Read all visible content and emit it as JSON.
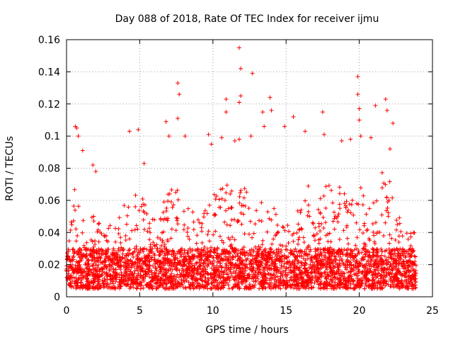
{
  "chart_data": {
    "type": "scatter",
    "title": "Day 088 of 2018, Rate Of TEC Index for receiver ijmu",
    "xlabel": "GPS time / hours",
    "ylabel": "ROTI / TECUs",
    "xlim": [
      0,
      25
    ],
    "ylim": [
      0,
      0.16
    ],
    "xticks": [
      0,
      5,
      10,
      15,
      20,
      25
    ],
    "xtick_labels": [
      "0",
      "5",
      "10",
      "15",
      "20",
      "25"
    ],
    "yticks": [
      0,
      0.02,
      0.04,
      0.06,
      0.08,
      0.1,
      0.12,
      0.14,
      0.16
    ],
    "ytick_labels": [
      "0",
      "0.02",
      "0.04",
      "0.06",
      "0.08",
      "0.1",
      "0.12",
      "0.14",
      "0.16"
    ],
    "grid": true,
    "marker": "+",
    "marker_color": "#ff0000",
    "baseline_range": [
      0.005,
      0.03
    ],
    "notable_points": [
      {
        "x": 0.6,
        "y": 0.106
      },
      {
        "x": 0.7,
        "y": 0.105
      },
      {
        "x": 0.8,
        "y": 0.1
      },
      {
        "x": 1.1,
        "y": 0.091
      },
      {
        "x": 1.8,
        "y": 0.082
      },
      {
        "x": 2.0,
        "y": 0.078
      },
      {
        "x": 4.3,
        "y": 0.103
      },
      {
        "x": 4.9,
        "y": 0.104
      },
      {
        "x": 5.3,
        "y": 0.083
      },
      {
        "x": 6.8,
        "y": 0.109
      },
      {
        "x": 7.0,
        "y": 0.1
      },
      {
        "x": 7.6,
        "y": 0.133
      },
      {
        "x": 7.7,
        "y": 0.126
      },
      {
        "x": 7.6,
        "y": 0.111
      },
      {
        "x": 8.1,
        "y": 0.1
      },
      {
        "x": 9.7,
        "y": 0.101
      },
      {
        "x": 9.9,
        "y": 0.095
      },
      {
        "x": 10.6,
        "y": 0.099
      },
      {
        "x": 10.9,
        "y": 0.115
      },
      {
        "x": 10.9,
        "y": 0.123
      },
      {
        "x": 11.5,
        "y": 0.097
      },
      {
        "x": 11.8,
        "y": 0.155
      },
      {
        "x": 11.9,
        "y": 0.142
      },
      {
        "x": 11.9,
        "y": 0.125
      },
      {
        "x": 11.8,
        "y": 0.121
      },
      {
        "x": 11.8,
        "y": 0.098
      },
      {
        "x": 12.7,
        "y": 0.139
      },
      {
        "x": 12.6,
        "y": 0.1
      },
      {
        "x": 13.4,
        "y": 0.115
      },
      {
        "x": 13.5,
        "y": 0.106
      },
      {
        "x": 13.9,
        "y": 0.124
      },
      {
        "x": 14.0,
        "y": 0.116
      },
      {
        "x": 14.9,
        "y": 0.106
      },
      {
        "x": 15.5,
        "y": 0.112
      },
      {
        "x": 16.3,
        "y": 0.103
      },
      {
        "x": 17.5,
        "y": 0.115
      },
      {
        "x": 17.6,
        "y": 0.101
      },
      {
        "x": 18.8,
        "y": 0.097
      },
      {
        "x": 19.4,
        "y": 0.098
      },
      {
        "x": 19.9,
        "y": 0.137
      },
      {
        "x": 19.9,
        "y": 0.126
      },
      {
        "x": 20.0,
        "y": 0.117
      },
      {
        "x": 20.0,
        "y": 0.11
      },
      {
        "x": 20.1,
        "y": 0.1
      },
      {
        "x": 20.8,
        "y": 0.099
      },
      {
        "x": 21.1,
        "y": 0.119
      },
      {
        "x": 21.8,
        "y": 0.123
      },
      {
        "x": 21.9,
        "y": 0.116
      },
      {
        "x": 22.3,
        "y": 0.108
      },
      {
        "x": 22.1,
        "y": 0.092
      }
    ],
    "activity_envelope": [
      {
        "x": 0,
        "peak": 0.04
      },
      {
        "x": 0.5,
        "peak": 0.07
      },
      {
        "x": 1,
        "peak": 0.06
      },
      {
        "x": 1.5,
        "peak": 0.05
      },
      {
        "x": 2,
        "peak": 0.055
      },
      {
        "x": 2.5,
        "peak": 0.04
      },
      {
        "x": 3,
        "peak": 0.045
      },
      {
        "x": 3.5,
        "peak": 0.05
      },
      {
        "x": 4,
        "peak": 0.06
      },
      {
        "x": 4.5,
        "peak": 0.075
      },
      {
        "x": 5,
        "peak": 0.07
      },
      {
        "x": 5.5,
        "peak": 0.055
      },
      {
        "x": 6,
        "peak": 0.05
      },
      {
        "x": 6.5,
        "peak": 0.06
      },
      {
        "x": 7,
        "peak": 0.07
      },
      {
        "x": 7.5,
        "peak": 0.075
      },
      {
        "x": 8,
        "peak": 0.065
      },
      {
        "x": 8.5,
        "peak": 0.055
      },
      {
        "x": 9,
        "peak": 0.05
      },
      {
        "x": 9.5,
        "peak": 0.055
      },
      {
        "x": 10,
        "peak": 0.065
      },
      {
        "x": 10.5,
        "peak": 0.075
      },
      {
        "x": 11,
        "peak": 0.07
      },
      {
        "x": 11.5,
        "peak": 0.065
      },
      {
        "x": 12,
        "peak": 0.07
      },
      {
        "x": 12.5,
        "peak": 0.065
      },
      {
        "x": 13,
        "peak": 0.06
      },
      {
        "x": 13.5,
        "peak": 0.065
      },
      {
        "x": 14,
        "peak": 0.06
      },
      {
        "x": 14.5,
        "peak": 0.05
      },
      {
        "x": 15,
        "peak": 0.045
      },
      {
        "x": 15.5,
        "peak": 0.05
      },
      {
        "x": 16,
        "peak": 0.06
      },
      {
        "x": 16.5,
        "peak": 0.07
      },
      {
        "x": 17,
        "peak": 0.045
      },
      {
        "x": 17.5,
        "peak": 0.07
      },
      {
        "x": 18,
        "peak": 0.075
      },
      {
        "x": 18.5,
        "peak": 0.07
      },
      {
        "x": 19,
        "peak": 0.065
      },
      {
        "x": 19.5,
        "peak": 0.06
      },
      {
        "x": 20,
        "peak": 0.075
      },
      {
        "x": 20.5,
        "peak": 0.06
      },
      {
        "x": 21,
        "peak": 0.065
      },
      {
        "x": 21.5,
        "peak": 0.08
      },
      {
        "x": 22,
        "peak": 0.075
      },
      {
        "x": 22.5,
        "peak": 0.055
      },
      {
        "x": 23,
        "peak": 0.045
      },
      {
        "x": 23.5,
        "peak": 0.04
      },
      {
        "x": 23.9,
        "peak": 0.04
      }
    ]
  }
}
